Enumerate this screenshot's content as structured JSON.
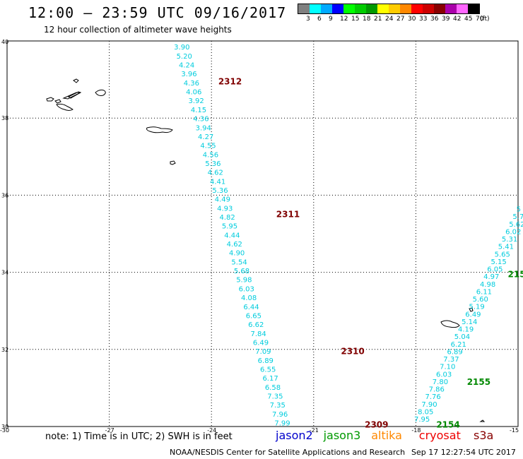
{
  "header": {
    "title": "12:00 — 23:59 UTC 09/16/2017",
    "subtitle": "12 hour collection of altimeter wave heights"
  },
  "legend": {
    "colors": [
      "#808080",
      "#00ffff",
      "#00aaff",
      "#0000ff",
      "#00ff00",
      "#00cc00",
      "#009900",
      "#ffff00",
      "#ffcc00",
      "#ff8800",
      "#ff0000",
      "#cc0000",
      "#880000",
      "#aa00aa",
      "#ff66ff",
      "#000000"
    ],
    "labels": [
      "3",
      "6",
      "9",
      "12",
      "15",
      "18",
      "21",
      "24",
      "27",
      "30",
      "33",
      "36",
      "39",
      "42",
      "45",
      "70",
      "(ft)"
    ]
  },
  "map": {
    "lon_range": [
      -30,
      -15
    ],
    "lat_range": [
      30,
      40
    ],
    "lon_ticks": [
      "-30",
      "-27",
      "-24",
      "-21",
      "-18",
      "-15"
    ],
    "lat_ticks": [
      "30",
      "32",
      "34",
      "36",
      "38",
      "40"
    ],
    "lat_tick_values": [
      30,
      32,
      34,
      36,
      38,
      40
    ],
    "lon_tick_values": [
      -30,
      -27,
      -24,
      -21,
      -18,
      -15
    ],
    "track_color": "#00ccdd",
    "pass_label_color": "#800000",
    "pass_label_green": "#008800",
    "track_west": {
      "values": [
        "3.90",
        "5.20",
        "4.24",
        "3.96",
        "4.36",
        "4.06",
        "3.92",
        "4.15",
        "4.36",
        "3.94",
        "4.27",
        "4.55",
        "4.56",
        "5.36",
        "4.62",
        "4.41",
        "5.36",
        "4.49",
        "4.93",
        "4.82",
        "5.95",
        "4.44",
        "4.62",
        "4.90",
        "5.54",
        "5.68",
        "5.98",
        "6.03",
        "4.08",
        "6.44",
        "6.65",
        "6.62",
        "7.84",
        "6.49",
        "7.09",
        "6.89",
        "6.55",
        "6.17",
        "6.58",
        "7.35",
        "7.35",
        "7.96",
        "7.99"
      ],
      "lon_start": -25.1,
      "lon_end": -22.15,
      "lat_start": 39.85,
      "lat_end": 30.1
    },
    "track_east": {
      "values": [
        "7.95",
        "8.05",
        "7.90",
        "7.76",
        "7.86",
        "7.80",
        "6.03",
        "7.10",
        "7.37",
        "6.89",
        "6.21",
        "5.04",
        "4.19",
        "5.14",
        "6.49",
        "5.19",
        "5.60",
        "6.11",
        "4.98",
        "4.97",
        "6.05",
        "5.15",
        "5.65",
        "5.41",
        "5.31",
        "6.02",
        "5.62",
        "5.7",
        "5"
      ],
      "lon_start": -18.05,
      "lon_end": -15.05,
      "lat_start": 30.2,
      "lat_end": 35.65
    },
    "pass_labels": [
      {
        "text": "2312",
        "lon": -23.8,
        "lat": 38.95,
        "green": false
      },
      {
        "text": "2311",
        "lon": -22.1,
        "lat": 35.5,
        "green": false
      },
      {
        "text": "2310",
        "lon": -20.2,
        "lat": 31.95,
        "green": false
      },
      {
        "text": "2309",
        "lon": -19.5,
        "lat": 30.05,
        "green": false
      },
      {
        "text": "2155",
        "lon": -16.5,
        "lat": 31.15,
        "green": true
      },
      {
        "text": "2154",
        "lon": -17.4,
        "lat": 30.05,
        "green": true
      },
      {
        "text": "215",
        "lon": -15.3,
        "lat": 33.95,
        "green": true
      }
    ]
  },
  "footer": {
    "note": "note: 1) Time is in UTC; 2) SWH is in feet",
    "satellites": [
      {
        "name": "jason2",
        "color": "#0000cc"
      },
      {
        "name": "jason3",
        "color": "#009900"
      },
      {
        "name": "altika",
        "color": "#ff8800"
      },
      {
        "name": "cryosat",
        "color": "#ee0000"
      },
      {
        "name": "s3a",
        "color": "#880000"
      }
    ],
    "credit": "NOAA/NESDIS Center for Satellite Applications and Research",
    "timestamp": "Sep 17 12:27:54 UTC 2017"
  }
}
